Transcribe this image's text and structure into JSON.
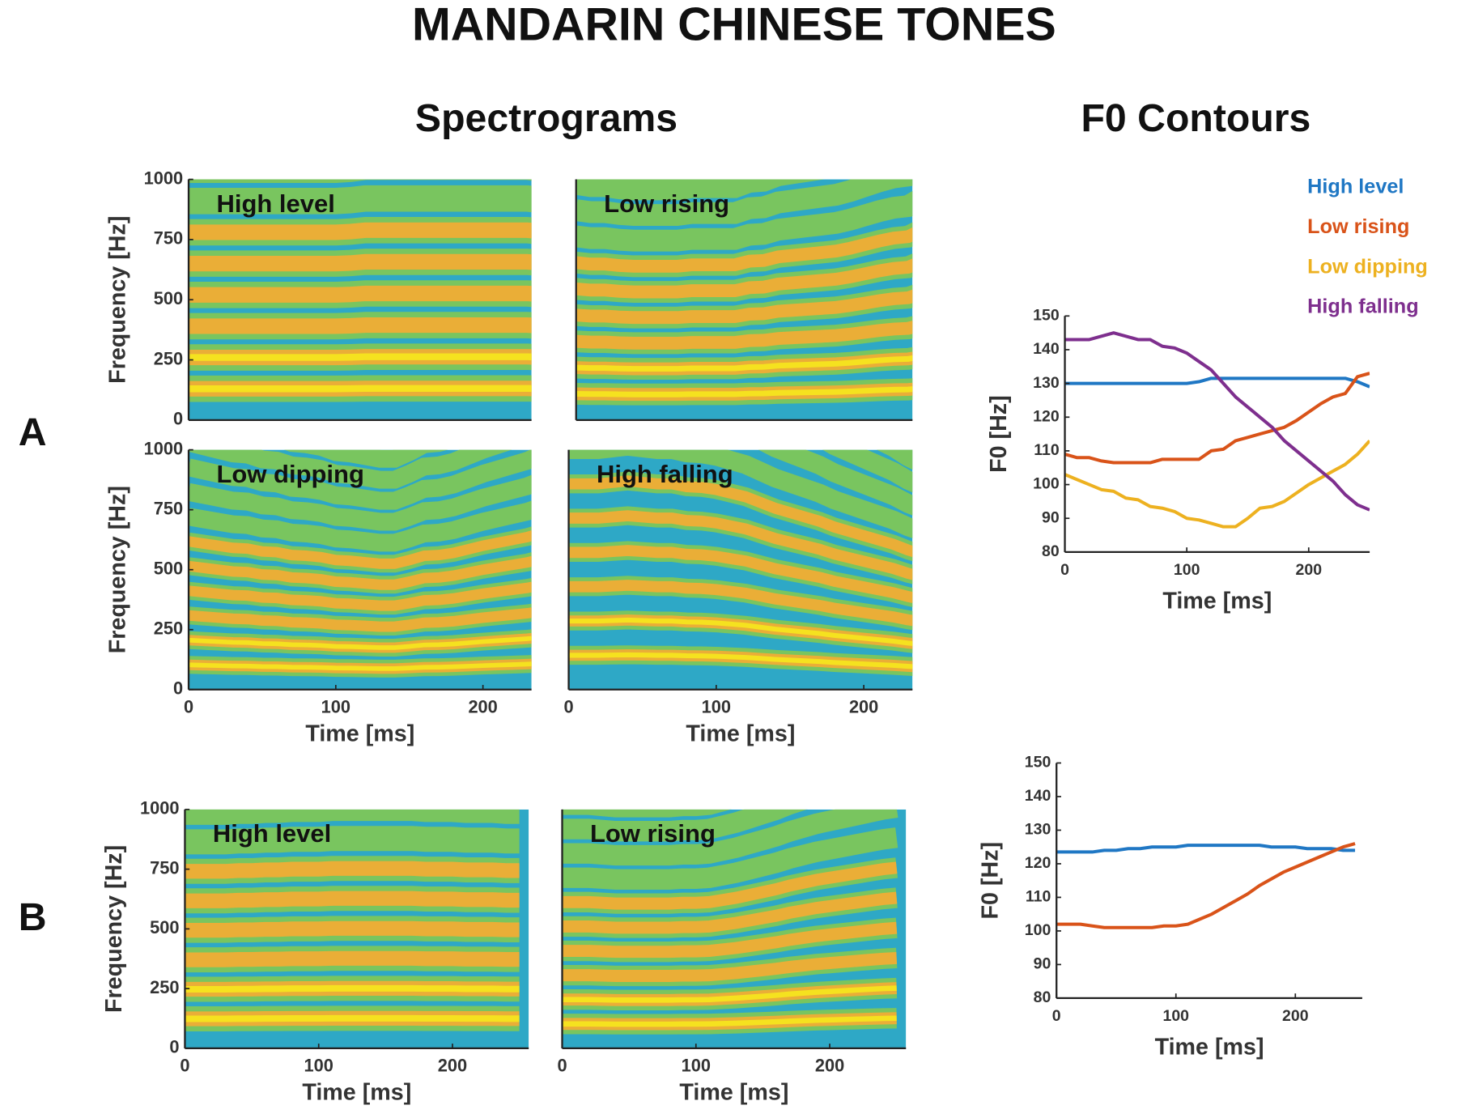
{
  "title": "MANDARIN CHINESE TONES",
  "headings": [
    "Spectrograms",
    "F0 Contours"
  ],
  "panel_labels": [
    "A",
    "B"
  ],
  "chart_data": [
    {
      "type": "spectrogram",
      "label": "High level",
      "ylabel": "Frequency [Hz]",
      "xlim": [
        0,
        233
      ],
      "ylim": [
        0,
        1000
      ],
      "yticks": [
        0,
        250,
        500,
        750,
        1000
      ]
    },
    {
      "type": "spectrogram",
      "label": "Low rising",
      "xlim": [
        0,
        233
      ],
      "ylim": [
        0,
        1000
      ]
    },
    {
      "type": "spectrogram",
      "label": "Low dipping",
      "xlabel": "Time [ms]",
      "ylabel": "Frequency [Hz]",
      "xlim": [
        0,
        233
      ],
      "ylim": [
        0,
        1000
      ],
      "xticks": [
        0,
        100,
        200
      ],
      "yticks": [
        0,
        250,
        500,
        750,
        1000
      ]
    },
    {
      "type": "spectrogram",
      "label": "High falling",
      "xlabel": "Time [ms]",
      "xlim": [
        0,
        233
      ],
      "ylim": [
        0,
        1000
      ],
      "xticks": [
        0,
        100,
        200
      ]
    },
    {
      "type": "line",
      "xlabel": "Time [ms]",
      "ylabel": "F0 [Hz]",
      "xlim": [
        0,
        250
      ],
      "ylim": [
        80,
        150
      ],
      "xticks": [
        0,
        100,
        200
      ],
      "yticks": [
        80,
        90,
        100,
        110,
        120,
        130,
        140,
        150
      ],
      "legend": true,
      "x": [
        0,
        10,
        20,
        30,
        40,
        50,
        60,
        70,
        80,
        90,
        100,
        110,
        120,
        130,
        140,
        150,
        160,
        170,
        180,
        190,
        200,
        210,
        220,
        230,
        240,
        250
      ],
      "series": [
        {
          "name": "High level",
          "color": "#1f77c4",
          "values": [
            130,
            130,
            130,
            130,
            130,
            130,
            130,
            130,
            130,
            130,
            130,
            130.5,
            131.5,
            131.5,
            131.5,
            131.5,
            131.5,
            131.5,
            131.5,
            131.5,
            131.5,
            131.5,
            131.5,
            131.5,
            130.5,
            129
          ]
        },
        {
          "name": "Low rising",
          "color": "#d95319",
          "values": [
            109,
            108,
            108,
            107,
            106.5,
            106.5,
            106.5,
            106.5,
            107.5,
            107.5,
            107.5,
            107.5,
            110,
            110.5,
            113,
            114,
            115,
            116,
            117,
            119,
            121.5,
            124,
            126,
            127,
            132,
            133
          ]
        },
        {
          "name": "Low dipping",
          "color": "#edb120",
          "values": [
            103,
            101.5,
            100,
            98.5,
            98,
            96,
            95.5,
            93.5,
            93,
            92,
            90,
            89.5,
            88.5,
            87.5,
            87.5,
            90,
            93,
            93.5,
            95,
            97.5,
            100,
            102,
            104,
            106,
            109,
            113
          ]
        },
        {
          "name": "High falling",
          "color": "#7e2f8e",
          "values": [
            143,
            143,
            143,
            144,
            145,
            144,
            143,
            143,
            141,
            140.5,
            139,
            136.5,
            134,
            130,
            126,
            123,
            120,
            117,
            113,
            110,
            107,
            104,
            101,
            97,
            94,
            92.5
          ]
        }
      ]
    },
    {
      "type": "spectrogram",
      "label": "High level",
      "xlabel": "Time [ms]",
      "ylabel": "Frequency [Hz]",
      "xlim": [
        0,
        257
      ],
      "ylim": [
        0,
        1000
      ],
      "xticks": [
        0,
        100,
        200
      ],
      "yticks": [
        0,
        250,
        500,
        750,
        1000
      ]
    },
    {
      "type": "spectrogram",
      "label": "Low rising",
      "xlabel": "Time [ms]",
      "xlim": [
        0,
        257
      ],
      "ylim": [
        0,
        1000
      ],
      "xticks": [
        0,
        100,
        200
      ]
    },
    {
      "type": "line",
      "xlabel": "Time [ms]",
      "ylabel": "F0 [Hz]",
      "xlim": [
        0,
        256
      ],
      "ylim": [
        80,
        150
      ],
      "xticks": [
        0,
        100,
        200
      ],
      "yticks": [
        80,
        90,
        100,
        110,
        120,
        130,
        140,
        150
      ],
      "legend": false,
      "x": [
        0,
        10,
        20,
        30,
        40,
        50,
        60,
        70,
        80,
        90,
        100,
        110,
        120,
        130,
        140,
        150,
        160,
        170,
        180,
        190,
        200,
        210,
        220,
        230,
        240,
        250
      ],
      "series": [
        {
          "name": "High level",
          "color": "#1f77c4",
          "values": [
            123.5,
            123.5,
            123.5,
            123.5,
            124,
            124,
            124.5,
            124.5,
            125,
            125,
            125,
            125.5,
            125.5,
            125.5,
            125.5,
            125.5,
            125.5,
            125.5,
            125,
            125,
            125,
            124.5,
            124.5,
            124.5,
            124,
            124
          ]
        },
        {
          "name": "Low rising",
          "color": "#d95319",
          "values": [
            102,
            102,
            102,
            101.5,
            101,
            101,
            101,
            101,
            101,
            101.5,
            101.5,
            102,
            103.5,
            105,
            107,
            109,
            111,
            113.5,
            115.5,
            117.5,
            119,
            120.5,
            122,
            123.5,
            125,
            126
          ]
        }
      ]
    }
  ]
}
